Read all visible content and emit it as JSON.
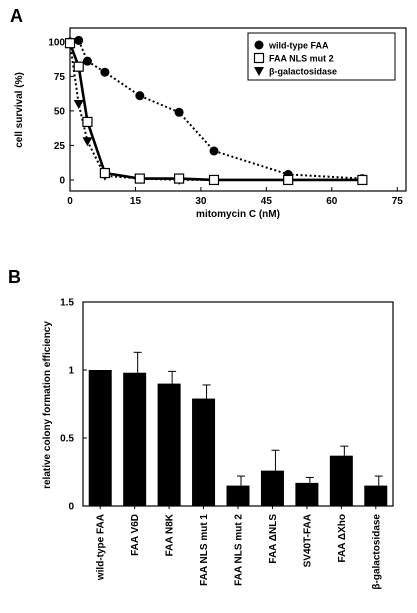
{
  "chart_data": [
    {
      "panel": "A",
      "type": "line",
      "xlabel": "mitomycin C (nM)",
      "ylabel": "cell survival (%)",
      "xlim": [
        0,
        77
      ],
      "ylim": [
        -8,
        110
      ],
      "xticks": [
        "0",
        "15",
        "30",
        "45",
        "60",
        "75"
      ],
      "yticks": [
        "0",
        "25",
        "50",
        "75",
        "100"
      ],
      "grid": false,
      "legend_position": "top-right",
      "series": [
        {
          "name": "wild-type FAA",
          "marker": "circle",
          "style": "dotted",
          "x": [
            0,
            2,
            4,
            8,
            16,
            25,
            33,
            50,
            67
          ],
          "y": [
            100,
            101,
            86,
            78,
            61,
            49,
            21,
            4,
            1
          ]
        },
        {
          "name": "FAA NLS mut 2",
          "marker": "square",
          "style": "solid",
          "x": [
            0,
            2,
            4,
            8,
            16,
            25,
            33,
            50,
            67
          ],
          "y": [
            99,
            82,
            42,
            5,
            1,
            1,
            0,
            0,
            0
          ]
        },
        {
          "name": "β-galactosidase",
          "marker": "triangle-down",
          "style": "dotted",
          "x": [
            0,
            2,
            4,
            8,
            16,
            25,
            33,
            50,
            67
          ],
          "y": [
            99,
            55,
            28,
            3,
            1,
            0,
            0,
            0,
            0
          ]
        }
      ]
    },
    {
      "panel": "B",
      "type": "bar",
      "ylabel": "relative colony formation efficiency",
      "ylim": [
        0,
        1.5
      ],
      "yticks": [
        "0",
        "0.5",
        "1",
        "1.5"
      ],
      "categories": [
        "wild-type FAA",
        "FAA V6D",
        "FAA N8K",
        "FAA NLS mut 1",
        "FAA NLS mut 2",
        "FAA ΔNLS",
        "SV40T-FAA",
        "FAA ΔXho",
        "β-galactosidase"
      ],
      "values": [
        1.0,
        0.98,
        0.9,
        0.79,
        0.15,
        0.26,
        0.17,
        0.37,
        0.15
      ],
      "errors": [
        0,
        0.15,
        0.09,
        0.1,
        0.07,
        0.15,
        0.04,
        0.07,
        0.07
      ]
    }
  ]
}
